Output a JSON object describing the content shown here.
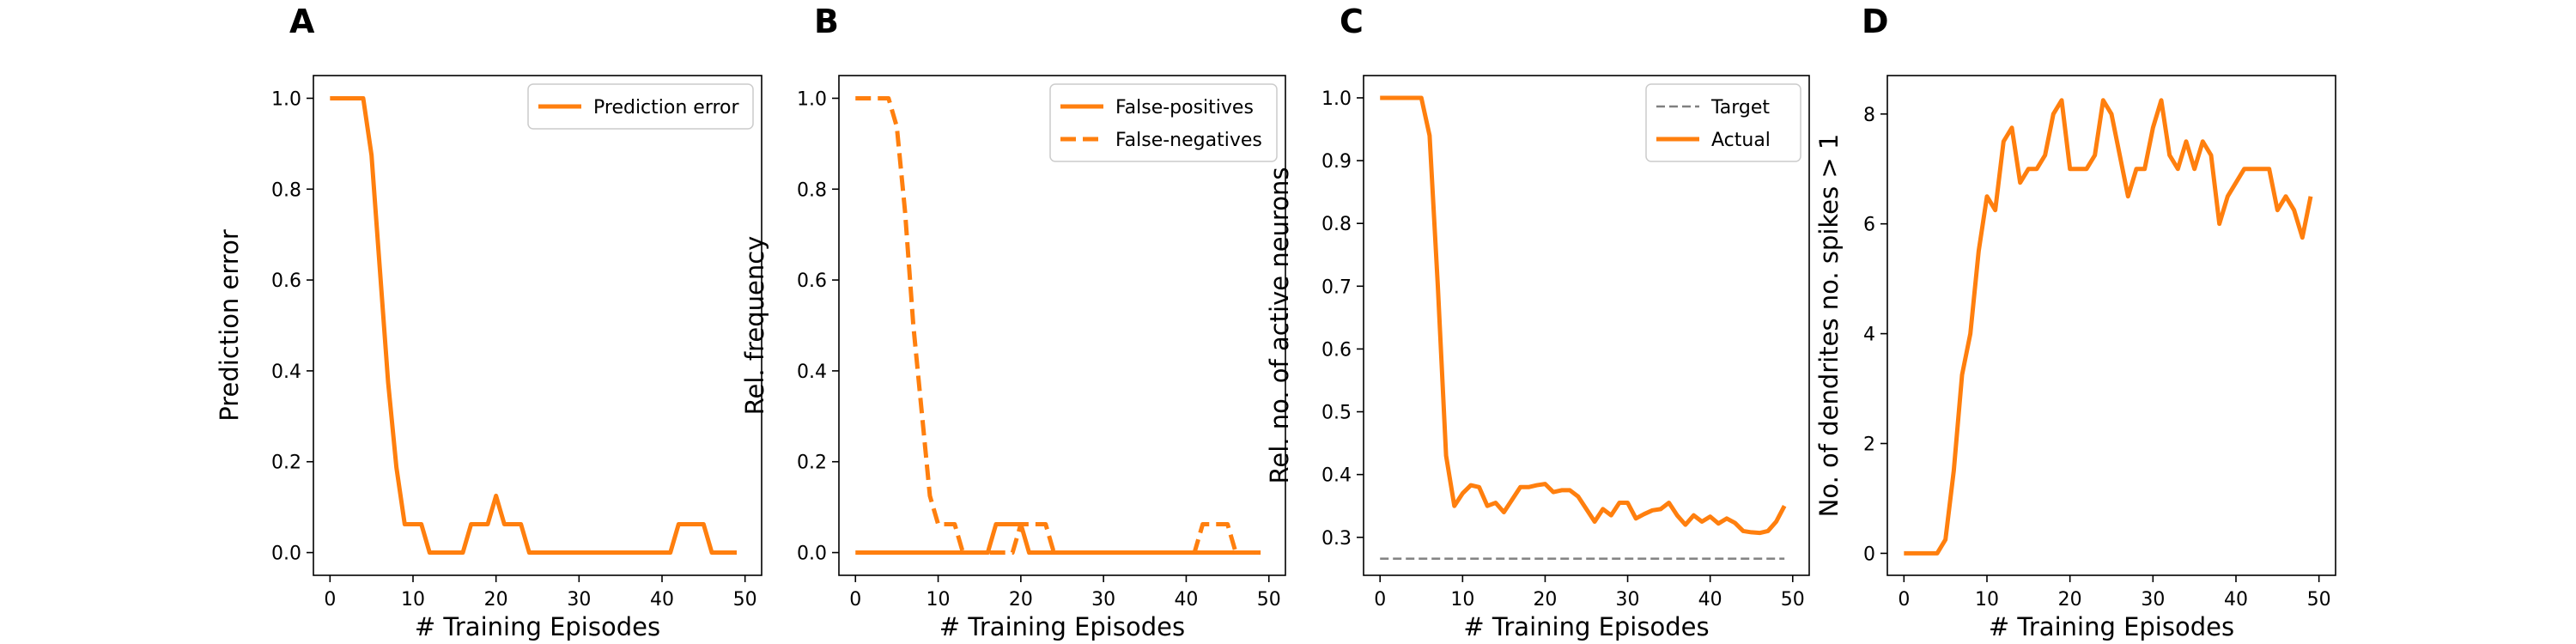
{
  "chart_data": [
    {
      "type": "line",
      "panel": "A",
      "xlabel": "# Training Episodes",
      "ylabel": "Prediction error",
      "xlim": [
        -2,
        52
      ],
      "ylim": [
        -0.05,
        1.05
      ],
      "xticks": [
        0,
        10,
        20,
        30,
        40,
        50
      ],
      "yticks": [
        0.0,
        0.2,
        0.4,
        0.6,
        0.8,
        1.0
      ],
      "ytick_labels": [
        "0.0",
        "0.2",
        "0.4",
        "0.6",
        "0.8",
        "1.0"
      ],
      "legend_position": "upper right",
      "grid": false,
      "series": [
        {
          "name": "Prediction error",
          "color": "#ff7f0e",
          "style": "solid",
          "x": [
            0,
            1,
            2,
            3,
            4,
            5,
            6,
            7,
            8,
            9,
            10,
            11,
            12,
            13,
            14,
            15,
            16,
            17,
            18,
            19,
            20,
            21,
            22,
            23,
            24,
            25,
            26,
            27,
            28,
            29,
            30,
            31,
            32,
            33,
            34,
            35,
            36,
            37,
            38,
            39,
            40,
            41,
            42,
            43,
            44,
            45,
            46,
            47,
            48,
            49
          ],
          "y": [
            1,
            1,
            1,
            1,
            1,
            0.875,
            0.625,
            0.375,
            0.1875,
            0.0625,
            0.0625,
            0.0625,
            0,
            0,
            0,
            0,
            0,
            0.0625,
            0.0625,
            0.0625,
            0.125,
            0.0625,
            0.0625,
            0.0625,
            0,
            0,
            0,
            0,
            0,
            0,
            0,
            0,
            0,
            0,
            0,
            0,
            0,
            0,
            0,
            0,
            0,
            0,
            0.0625,
            0.0625,
            0.0625,
            0.0625,
            0,
            0,
            0,
            0
          ]
        }
      ]
    },
    {
      "type": "line",
      "panel": "B",
      "xlabel": "# Training Episodes",
      "ylabel": "Rel. frequency",
      "xlim": [
        -2,
        52
      ],
      "ylim": [
        -0.05,
        1.05
      ],
      "xticks": [
        0,
        10,
        20,
        30,
        40,
        50
      ],
      "yticks": [
        0.0,
        0.2,
        0.4,
        0.6,
        0.8,
        1.0
      ],
      "ytick_labels": [
        "0.0",
        "0.2",
        "0.4",
        "0.6",
        "0.8",
        "1.0"
      ],
      "legend_position": "upper right",
      "grid": false,
      "series": [
        {
          "name": "False-positives",
          "color": "#ff7f0e",
          "style": "solid",
          "x": [
            0,
            1,
            2,
            3,
            4,
            5,
            6,
            7,
            8,
            9,
            10,
            11,
            12,
            13,
            14,
            15,
            16,
            17,
            18,
            19,
            20,
            21,
            22,
            23,
            24,
            25,
            26,
            27,
            28,
            29,
            30,
            31,
            32,
            33,
            34,
            35,
            36,
            37,
            38,
            39,
            40,
            41,
            42,
            43,
            44,
            45,
            46,
            47,
            48,
            49
          ],
          "y": [
            0,
            0,
            0,
            0,
            0,
            0,
            0,
            0,
            0,
            0,
            0,
            0,
            0,
            0,
            0,
            0,
            0,
            0.0625,
            0.0625,
            0.0625,
            0.0625,
            0,
            0,
            0,
            0,
            0,
            0,
            0,
            0,
            0,
            0,
            0,
            0,
            0,
            0,
            0,
            0,
            0,
            0,
            0,
            0,
            0,
            0,
            0,
            0,
            0,
            0,
            0,
            0,
            0
          ]
        },
        {
          "name": "False-negatives",
          "color": "#ff7f0e",
          "style": "dashed",
          "x": [
            0,
            1,
            2,
            3,
            4,
            5,
            6,
            7,
            8,
            9,
            10,
            11,
            12,
            13,
            14,
            15,
            16,
            17,
            18,
            19,
            20,
            21,
            22,
            23,
            24,
            25,
            26,
            27,
            28,
            29,
            30,
            31,
            32,
            33,
            34,
            35,
            36,
            37,
            38,
            39,
            40,
            41,
            42,
            43,
            44,
            45,
            46,
            47,
            48,
            49
          ],
          "y": [
            1,
            1,
            1,
            1,
            1,
            0.9375,
            0.75,
            0.5,
            0.3125,
            0.125,
            0.0625,
            0.0625,
            0.0625,
            0,
            0,
            0,
            0,
            0,
            0,
            0,
            0.0625,
            0.0625,
            0.0625,
            0.0625,
            0,
            0,
            0,
            0,
            0,
            0,
            0,
            0,
            0,
            0,
            0,
            0,
            0,
            0,
            0,
            0,
            0,
            0,
            0.0625,
            0.0625,
            0.0625,
            0.0625,
            0,
            0,
            0,
            0
          ]
        }
      ]
    },
    {
      "type": "line",
      "panel": "C",
      "xlabel": "# Training Episodes",
      "ylabel": "Rel. no. of active neurons",
      "xlim": [
        -2,
        52
      ],
      "ylim": [
        0.2395,
        1.0355
      ],
      "xticks": [
        0,
        10,
        20,
        30,
        40,
        50
      ],
      "yticks": [
        0.3,
        0.4,
        0.5,
        0.6,
        0.7,
        0.8,
        0.9,
        1.0
      ],
      "ytick_labels": [
        "0.3",
        "0.4",
        "0.5",
        "0.6",
        "0.7",
        "0.8",
        "0.9",
        "1.0"
      ],
      "legend_position": "upper right",
      "grid": false,
      "series": [
        {
          "name": "Target",
          "color": "#808080",
          "style": "dashed",
          "x": [
            0,
            49
          ],
          "y": [
            0.266,
            0.266
          ]
        },
        {
          "name": "Actual",
          "color": "#ff7f0e",
          "style": "solid",
          "x": [
            0,
            1,
            2,
            3,
            4,
            5,
            6,
            7,
            8,
            9,
            10,
            11,
            12,
            13,
            14,
            15,
            16,
            17,
            18,
            19,
            20,
            21,
            22,
            23,
            24,
            25,
            26,
            27,
            28,
            29,
            30,
            31,
            32,
            33,
            34,
            35,
            36,
            37,
            38,
            39,
            40,
            41,
            42,
            43,
            44,
            45,
            46,
            47,
            48,
            49
          ],
          "y": [
            1,
            1,
            1,
            1,
            1,
            1,
            0.94,
            0.7,
            0.43,
            0.35,
            0.37,
            0.383,
            0.38,
            0.35,
            0.355,
            0.34,
            0.36,
            0.38,
            0.38,
            0.383,
            0.385,
            0.372,
            0.375,
            0.375,
            0.365,
            0.345,
            0.325,
            0.345,
            0.335,
            0.355,
            0.355,
            0.33,
            0.337,
            0.343,
            0.345,
            0.355,
            0.335,
            0.32,
            0.335,
            0.325,
            0.333,
            0.322,
            0.33,
            0.323,
            0.31,
            0.308,
            0.307,
            0.31,
            0.325,
            0.35
          ]
        }
      ]
    },
    {
      "type": "line",
      "panel": "D",
      "xlabel": "# Training Episodes",
      "ylabel": "No. of dendrites no. spikes > 1",
      "xlim": [
        -2,
        52
      ],
      "ylim": [
        -0.4,
        8.7
      ],
      "xticks": [
        0,
        10,
        20,
        30,
        40,
        50
      ],
      "yticks": [
        0,
        2,
        4,
        6,
        8
      ],
      "ytick_labels": [
        "0",
        "2",
        "4",
        "6",
        "8"
      ],
      "legend_position": "none",
      "grid": false,
      "series": [
        {
          "name": "",
          "color": "#ff7f0e",
          "style": "solid",
          "x": [
            0,
            1,
            2,
            3,
            4,
            5,
            6,
            7,
            8,
            9,
            10,
            11,
            12,
            13,
            14,
            15,
            16,
            17,
            18,
            19,
            20,
            21,
            22,
            23,
            24,
            25,
            26,
            27,
            28,
            29,
            30,
            31,
            32,
            33,
            34,
            35,
            36,
            37,
            38,
            39,
            40,
            41,
            42,
            43,
            44,
            45,
            46,
            47,
            48,
            49
          ],
          "y": [
            0,
            0,
            0,
            0,
            0,
            0.25,
            1.5,
            3.25,
            4,
            5.5,
            6.5,
            6.25,
            7.5,
            7.75,
            6.75,
            7,
            7,
            7.25,
            8,
            8.25,
            7,
            7,
            7,
            7.25,
            8.25,
            8,
            7.25,
            6.5,
            7,
            7,
            7.75,
            8.25,
            7.25,
            7,
            7.5,
            7,
            7.5,
            7.25,
            6,
            6.5,
            6.75,
            7,
            7,
            7,
            7,
            6.25,
            6.5,
            6.25,
            5.75,
            6.5
          ]
        }
      ]
    }
  ]
}
